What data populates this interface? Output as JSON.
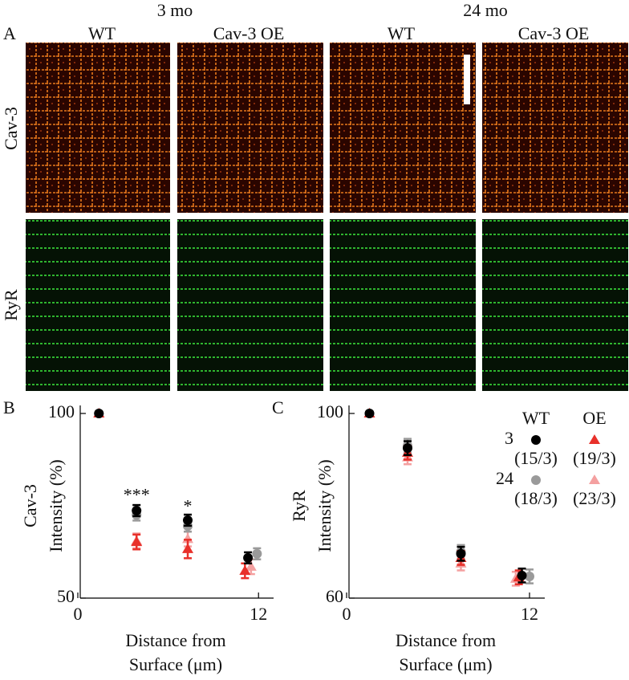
{
  "panel_a": {
    "letter": "A",
    "groups": [
      "3 mo",
      "24 mo"
    ],
    "columns": [
      "WT",
      "Cav-3 OE",
      "WT",
      "Cav-3 OE"
    ],
    "rows": [
      "Cav-3",
      "RyR"
    ]
  },
  "chart_data": [
    {
      "type": "scatter",
      "letter": "B",
      "ylabel_top": "Cav-3",
      "ylabel": "Intensity (%)",
      "xlabel": [
        "Distance from",
        "Surface (μm)"
      ],
      "xlim": [
        0,
        13
      ],
      "xticks": [
        0,
        12
      ],
      "ylim": [
        50,
        100
      ],
      "yticks": [
        50,
        100
      ],
      "series": [
        {
          "color": "#000000",
          "marker": "circle",
          "x": [
            1.4,
            3.9,
            7.3,
            11.3
          ],
          "values": [
            100,
            73.7,
            71.1,
            60.9
          ],
          "errors": [
            0.4,
            1.5,
            1.5,
            1.5
          ]
        },
        {
          "color": "#e8302a",
          "marker": "triangle",
          "x": [
            1.4,
            3.9,
            7.3,
            11.1
          ],
          "values": [
            100,
            65.2,
            63.3,
            57.4
          ],
          "errors": [
            0.4,
            2,
            2.5,
            2
          ]
        },
        {
          "color": "#9a9a9a",
          "marker": "circle",
          "x": [
            1.4,
            3.9,
            7.3,
            11.9
          ],
          "values": [
            100,
            72.5,
            69.5,
            62
          ],
          "errors": [
            0.4,
            1.5,
            1.5,
            1.5
          ]
        },
        {
          "color": "#f4a0a0",
          "marker": "triangle",
          "x": [
            1.4,
            3.9,
            7.3,
            11.5
          ],
          "values": [
            100,
            65.5,
            66,
            58.5
          ],
          "errors": [
            0.4,
            2,
            2,
            2
          ]
        }
      ],
      "annotations": [
        {
          "text": "***",
          "x": 3.9,
          "y": 77.5
        },
        {
          "text": "*",
          "x": 7.3,
          "y": 74.5
        }
      ]
    },
    {
      "type": "scatter",
      "letter": "C",
      "ylabel_top": "RyR",
      "ylabel": "Intensity (%)",
      "xlabel": [
        "Distance from",
        "Surface (μm)"
      ],
      "xlim": [
        0,
        13
      ],
      "xticks": [
        0,
        12
      ],
      "ylim": [
        60,
        100
      ],
      "yticks": [
        60,
        100
      ],
      "series": [
        {
          "color": "#000000",
          "marker": "circle",
          "x": [
            1.5,
            4,
            7.5,
            11.5
          ],
          "values": [
            100,
            92.5,
            69.6,
            64.9
          ],
          "errors": [
            0.3,
            1.5,
            1.5,
            1.5
          ]
        },
        {
          "color": "#e8302a",
          "marker": "triangle",
          "x": [
            1.5,
            4,
            7.5,
            11.3
          ],
          "values": [
            100,
            91.5,
            68.7,
            64.5
          ],
          "errors": [
            0.3,
            1.5,
            1.5,
            1.5
          ]
        },
        {
          "color": "#9a9a9a",
          "marker": "circle",
          "x": [
            1.5,
            4,
            7.5,
            12
          ],
          "values": [
            100,
            93,
            70,
            64.7
          ],
          "errors": [
            0.3,
            1.5,
            1.5,
            1.5
          ]
        },
        {
          "color": "#f4a0a0",
          "marker": "triangle",
          "x": [
            1.5,
            4,
            7.5,
            11.1
          ],
          "values": [
            100,
            90.5,
            67.5,
            64.2
          ],
          "errors": [
            0.3,
            1.5,
            1.5,
            1.5
          ]
        }
      ],
      "legend": {
        "columns": [
          "WT",
          "OE"
        ],
        "rows": [
          "3",
          "24"
        ],
        "counts": [
          [
            "(15/3)",
            "(19/3)"
          ],
          [
            "(18/3)",
            "(23/3)"
          ]
        ]
      }
    }
  ]
}
